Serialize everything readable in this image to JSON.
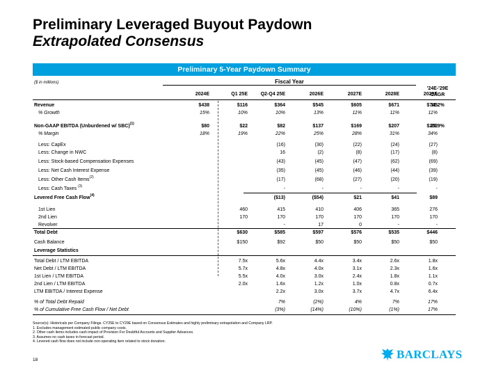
{
  "title": "Preliminary Leveraged Buyout Paydown",
  "subtitle": "Extrapolated Consensus",
  "banner": "Preliminary 5-Year Paydown Summary",
  "units": "($ in millions)",
  "fiscal_year": "Fiscal Year",
  "columns": [
    "2024E",
    "Q1 25E",
    "Q2-Q4 25E",
    "2026E",
    "2027E",
    "2028E",
    "2029E"
  ],
  "cagr_header": [
    "'24E-'29E",
    "CAGR"
  ],
  "rows": {
    "revenue": {
      "label": "Revenue",
      "values": [
        "$438",
        "$116",
        "$364",
        "$545",
        "$605",
        "$671",
        "$745"
      ],
      "cagr": "11.2%"
    },
    "growth": {
      "label": "% Growth",
      "values": [
        "15%",
        "10%",
        "10%",
        "13%",
        "11%",
        "11%",
        "11%"
      ]
    },
    "ebitda": {
      "label": "Non-GAAP EBITDA (Unburdened w/ SBC)",
      "sup": "(1)",
      "values": [
        "$80",
        "$22",
        "$82",
        "$137",
        "$169",
        "$207",
        "$252"
      ],
      "cagr": "25.9%"
    },
    "margin": {
      "label": "% Margin",
      "values": [
        "18%",
        "19%",
        "22%",
        "25%",
        "28%",
        "31%",
        "34%"
      ]
    },
    "capex": {
      "label": "Less: CapEx",
      "values": [
        "",
        "",
        "(16)",
        "(30)",
        "(22)",
        "(24)",
        "(27)"
      ]
    },
    "nwc": {
      "label": "Less: Change in NWC",
      "values": [
        "",
        "",
        "16",
        "(2)",
        "(8)",
        "(17)",
        "(8)"
      ]
    },
    "sbc": {
      "label": "Less: Stock-based Compensation Expenses",
      "values": [
        "",
        "",
        "(43)",
        "(45)",
        "(47)",
        "(62)",
        "(69)"
      ]
    },
    "interest": {
      "label": "Less: Net Cash Interest Expense",
      "values": [
        "",
        "",
        "(35)",
        "(45)",
        "(46)",
        "(44)",
        "(39)"
      ]
    },
    "other": {
      "label": "Less: Other Cash Items",
      "sup": "(2)",
      "values": [
        "",
        "",
        "(17)",
        "(68)",
        "(27)",
        "(20)",
        "(19)"
      ]
    },
    "taxes": {
      "label": "Less: Cash Taxes",
      "sup": "(3)",
      "values": [
        "",
        "",
        "-",
        "-",
        "-",
        "-",
        "-"
      ]
    },
    "lfcf": {
      "label": "Levered Free Cash Flow",
      "sup": "(4)",
      "values": [
        "",
        "",
        "($13)",
        "($54)",
        "$21",
        "$41",
        "$89"
      ]
    },
    "lien1": {
      "label": "1st Lien",
      "values": [
        "",
        "460",
        "415",
        "410",
        "406",
        "365",
        "276"
      ]
    },
    "lien2": {
      "label": "2nd Lien",
      "values": [
        "",
        "170",
        "170",
        "170",
        "170",
        "170",
        "170"
      ]
    },
    "revolver": {
      "label": "Revolver",
      "values": [
        "",
        "",
        "-",
        "17",
        "0",
        "-",
        "-"
      ]
    },
    "total_debt": {
      "label": "Total Debt",
      "values": [
        "",
        "$630",
        "$585",
        "$597",
        "$576",
        "$535",
        "$446"
      ]
    },
    "cash": {
      "label": "Cash Balance",
      "values": [
        "",
        "$150",
        "$92",
        "$50",
        "$50",
        "$50",
        "$50"
      ]
    },
    "lev_stats": {
      "label": "Leverage Statistics"
    },
    "td_ebitda": {
      "label": "Total Debt / LTM EBITDA",
      "values": [
        "",
        "7.5x",
        "5.6x",
        "4.4x",
        "3.4x",
        "2.6x",
        "1.8x"
      ]
    },
    "nd_ebitda": {
      "label": "Net Debt / LTM EBITDA",
      "values": [
        "",
        "5.7x",
        "4.8x",
        "4.0x",
        "3.1x",
        "2.3x",
        "1.6x"
      ]
    },
    "l1_ebitda": {
      "label": "1st Lien / LTM EBITDA",
      "values": [
        "",
        "5.5x",
        "4.0x",
        "3.0x",
        "2.4x",
        "1.8x",
        "1.1x"
      ]
    },
    "l2_ebitda": {
      "label": "2nd Lien / LTM EBITDA",
      "values": [
        "",
        "2.0x",
        "1.6x",
        "1.2x",
        "1.0x",
        "0.8x",
        "0.7x"
      ]
    },
    "ebitda_int": {
      "label": "LTM EBITDA / Interest Expense",
      "values": [
        "",
        "",
        "2.2x",
        "3.0x",
        "3.7x",
        "4.7x",
        "6.4x"
      ]
    },
    "debt_repaid": {
      "label": "% of Total Debt Repaid",
      "values": [
        "",
        "",
        "7%",
        "(2%)",
        "4%",
        "7%",
        "17%"
      ]
    },
    "cum_fcf": {
      "label": "% of Cumulative Free Cash Flow / Net Debt",
      "values": [
        "",
        "",
        "(3%)",
        "(14%)",
        "(10%)",
        "(1%)",
        "17%"
      ]
    }
  },
  "notes": {
    "source": "Source(s): Historicals per Company Filings. CY25E to CY29E based on Consensus Estimates and highly preliminary extrapolation and Company LRP.",
    "n1": "1.     Excludes management estimated public company costs.",
    "n2": "2.     Other cash items includes cash impact of Provision For Doubtful Accounts and Supplier Advances.",
    "n3": "3.     Assumes no cash taxes in forecast period.",
    "n4": "4.     Levered cash flow does not include non-operating item related to stock donation."
  },
  "page_number": "18",
  "logo_text": "BARCLAYS",
  "colors": {
    "banner": "#00a0df",
    "logo": "#00aeef"
  }
}
